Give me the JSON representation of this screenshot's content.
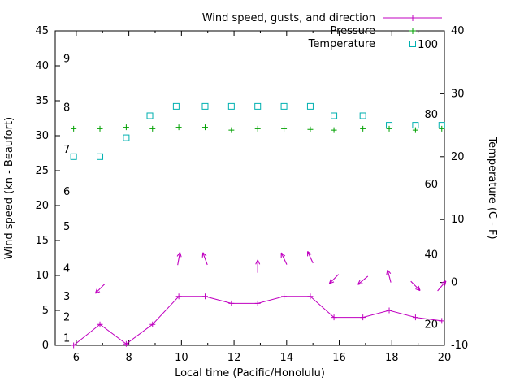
{
  "chart_data": {
    "type": "line",
    "title": "",
    "axes": {
      "x": {
        "label": "Local time (Pacific/Honolulu)",
        "range": [
          5.2,
          20
        ],
        "ticks": [
          6,
          8,
          10,
          12,
          14,
          16,
          18,
          20
        ],
        "minor_ticks": [
          7,
          9,
          11,
          13,
          15,
          17,
          19
        ]
      },
      "y_left": {
        "label": "Wind speed (kn - Beaufort)",
        "range": [
          0,
          45
        ],
        "ticks": [
          0,
          5,
          10,
          15,
          20,
          25,
          30,
          35,
          40,
          45
        ],
        "beaufort_labels": [
          {
            "label": "1",
            "kn": 1
          },
          {
            "label": "2",
            "kn": 4
          },
          {
            "label": "3",
            "kn": 7
          },
          {
            "label": "4",
            "kn": 11
          },
          {
            "label": "5",
            "kn": 17
          },
          {
            "label": "6",
            "kn": 22
          },
          {
            "label": "7",
            "kn": 28
          },
          {
            "label": "8",
            "kn": 34
          },
          {
            "label": "9",
            "kn": 41
          }
        ]
      },
      "y_right": {
        "label": "Temperature (C - F)",
        "range": [
          -10,
          40
        ],
        "ticks": [
          -10,
          0,
          10,
          20,
          30,
          40
        ],
        "fahrenheit_labels": [
          {
            "label": "20",
            "c": -6.7
          },
          {
            "label": "40",
            "c": 4.4
          },
          {
            "label": "60",
            "c": 15.6
          },
          {
            "label": "80",
            "c": 26.7
          },
          {
            "label": "100",
            "c": 37.8
          }
        ]
      }
    },
    "legend": [
      {
        "label": "Wind speed, gusts, and direction",
        "marker": "plus-line",
        "color": "#C000C0"
      },
      {
        "label": "Pressure",
        "marker": "plus",
        "color": "#00A000"
      },
      {
        "label": "Temperature",
        "marker": "square",
        "color": "#00B0B0"
      }
    ],
    "series": {
      "wind_speed": {
        "color": "#C000C0",
        "x": [
          5.9,
          6.9,
          7.9,
          8.9,
          9.9,
          10.9,
          11.9,
          12.9,
          13.9,
          14.9,
          15.8,
          16.9,
          17.9,
          18.9,
          19.9
        ],
        "kn": [
          0,
          3,
          0.2,
          3,
          7,
          7,
          6,
          6,
          7,
          7,
          4,
          4,
          5,
          4,
          3.5
        ]
      },
      "wind_gust_arrows": {
        "color": "#C000C0",
        "points": [
          {
            "x": 6.9,
            "kn": 8.1,
            "dir": 225
          },
          {
            "x": 9.9,
            "kn": 12.4,
            "dir": 10
          },
          {
            "x": 10.9,
            "kn": 12.4,
            "dir": 340
          },
          {
            "x": 12.9,
            "kn": 11.3,
            "dir": 0
          },
          {
            "x": 13.9,
            "kn": 12.4,
            "dir": 335
          },
          {
            "x": 14.9,
            "kn": 12.6,
            "dir": 335
          },
          {
            "x": 15.8,
            "kn": 9.5,
            "dir": 225
          },
          {
            "x": 16.9,
            "kn": 9.3,
            "dir": 230
          },
          {
            "x": 17.9,
            "kn": 9.9,
            "dir": 345
          },
          {
            "x": 18.9,
            "kn": 8.5,
            "dir": 135
          },
          {
            "x": 19.9,
            "kn": 8.5,
            "dir": 40
          }
        ]
      },
      "pressure": {
        "color": "#00A000",
        "x": [
          5.9,
          6.9,
          7.9,
          8.9,
          9.9,
          10.9,
          11.9,
          12.9,
          13.9,
          14.9,
          15.8,
          16.9,
          17.9,
          18.9,
          19.9
        ],
        "kn": [
          31,
          31,
          31.2,
          31,
          31.2,
          31.2,
          30.8,
          31,
          31,
          30.9,
          30.8,
          31,
          31,
          30.8,
          31
        ]
      },
      "temperature": {
        "color": "#00B0B0",
        "x": [
          5.9,
          6.9,
          7.9,
          8.8,
          9.8,
          10.9,
          11.9,
          12.9,
          13.9,
          14.9,
          15.8,
          16.9,
          17.9,
          18.9,
          19.9
        ],
        "c": [
          20,
          20,
          23,
          26.5,
          28,
          28,
          28,
          28,
          28,
          28,
          26.5,
          26.5,
          25,
          25,
          25
        ]
      }
    }
  }
}
